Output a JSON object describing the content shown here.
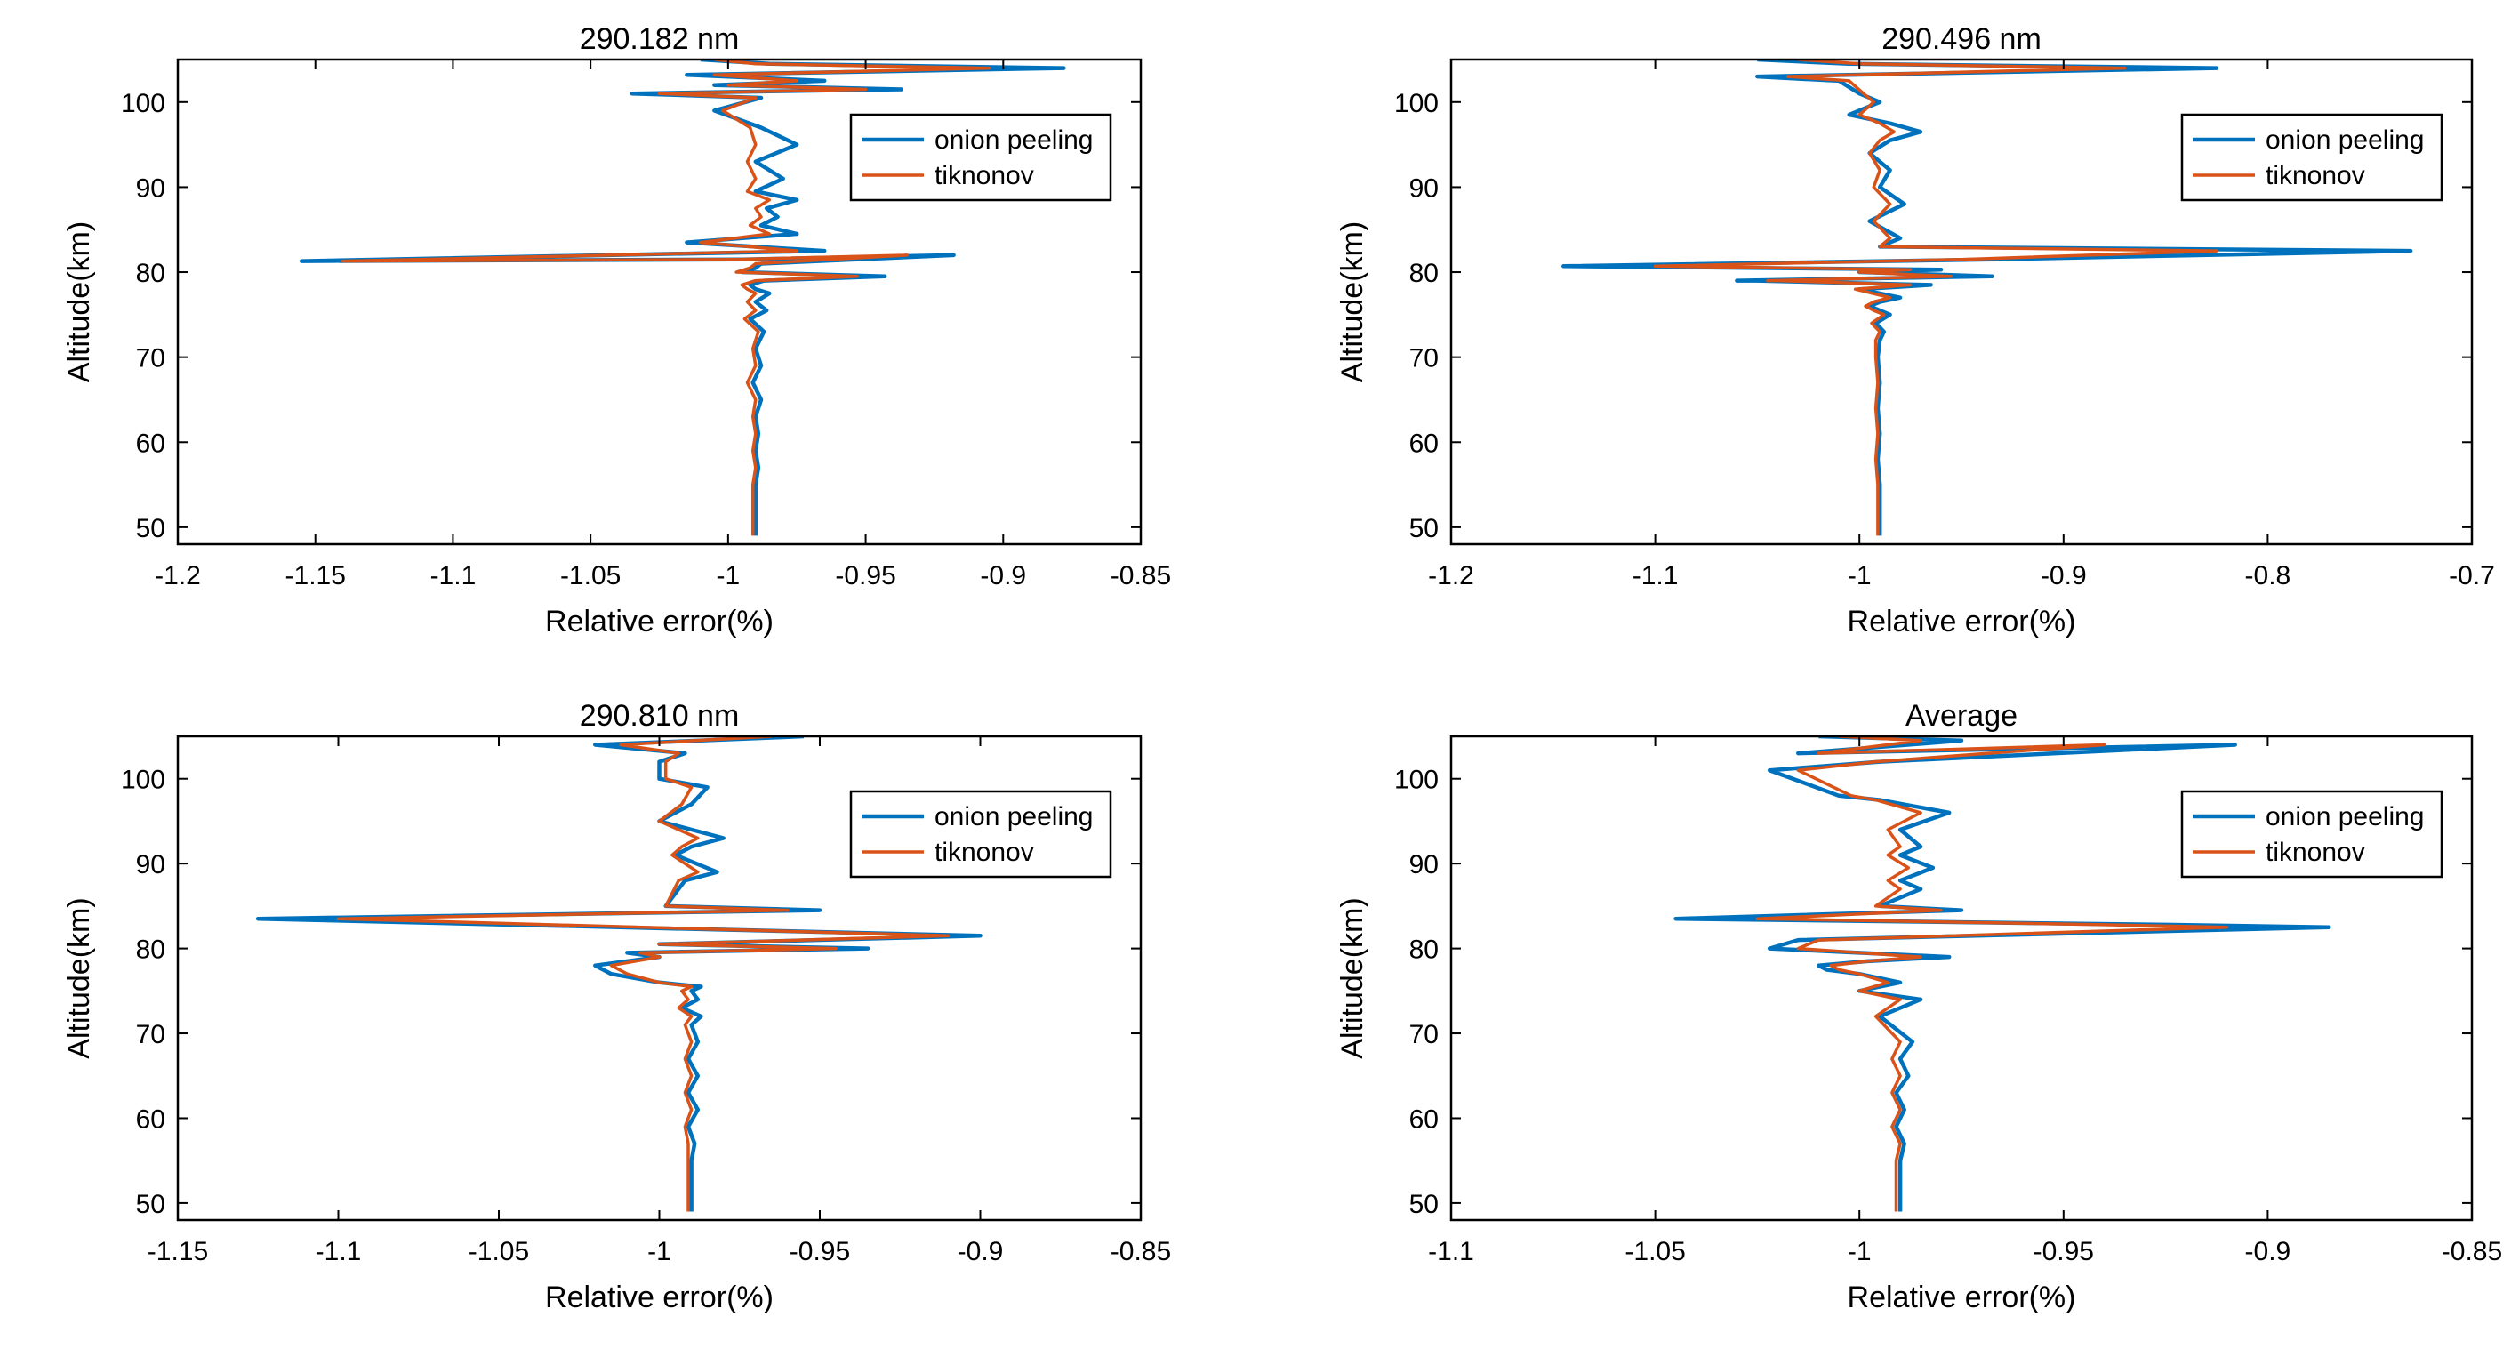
{
  "figure": "Relative error vs altitude",
  "colors": {
    "onion": "#0072BD",
    "tik": "#D95319"
  },
  "chart_data": [
    {
      "type": "line",
      "title": "290.182 nm",
      "xlabel": "Relative error(%)",
      "ylabel": "Altitude(km)",
      "xlim": [
        -1.2,
        -0.85
      ],
      "ylim": [
        48,
        105
      ],
      "xticks": [
        -1.2,
        -1.15,
        -1.1,
        -1.05,
        -1,
        -0.95,
        -0.9,
        -0.85
      ],
      "xtick_labels": [
        "-1.2",
        "-1.15",
        "-1.1",
        "-1.05",
        "-1",
        "-0.95",
        "-0.9",
        "-0.85"
      ],
      "yticks": [
        50,
        60,
        70,
        80,
        90,
        100
      ],
      "ytick_labels": [
        "50",
        "60",
        "70",
        "80",
        "90",
        "100"
      ],
      "legend": [
        "onion peeling",
        "tiknonov"
      ],
      "legend_position": "top-right",
      "series": [
        {
          "name": "onion peeling",
          "x": [
            -0.99,
            -0.99,
            -0.989,
            -0.99,
            -0.989,
            -0.99,
            -0.988,
            -0.991,
            -0.988,
            -0.99,
            -0.987,
            -0.992,
            -0.986,
            -0.99,
            -0.985,
            -0.99,
            -0.992,
            -0.987,
            -0.943,
            -0.995,
            -0.99,
            -0.988,
            -0.918,
            -0.995,
            -1.155,
            -0.965,
            -1.015,
            -0.975,
            -0.988,
            -0.982,
            -0.986,
            -0.975,
            -0.99,
            -0.98,
            -0.99,
            -0.975,
            -0.988,
            -1.005,
            -0.988,
            -1.035,
            -0.937,
            -1.005,
            -0.965,
            -1.015,
            -0.878,
            -0.985,
            -1.01
          ],
          "y": [
            49,
            55,
            57,
            59,
            61,
            63,
            65,
            67,
            69,
            71,
            73,
            74.5,
            75.5,
            76.5,
            77.5,
            78,
            78.5,
            79,
            79.5,
            80,
            80.5,
            81,
            82,
            81.5,
            81.3,
            82.5,
            83.5,
            84.5,
            85.5,
            86.5,
            87.5,
            88.5,
            89.5,
            91,
            93,
            95,
            97,
            99,
            100.5,
            101,
            101.5,
            102,
            102.5,
            103.2,
            104,
            104.5,
            105
          ]
        },
        {
          "name": "tiknonov",
          "x": [
            -0.991,
            -0.991,
            -0.99,
            -0.991,
            -0.99,
            -0.991,
            -0.99,
            -0.993,
            -0.99,
            -0.991,
            -0.989,
            -0.994,
            -0.99,
            -0.993,
            -0.99,
            -0.993,
            -0.995,
            -0.99,
            -0.953,
            -0.997,
            -0.992,
            -0.99,
            -0.935,
            -0.997,
            -1.14,
            -0.975,
            -1.01,
            -0.985,
            -0.992,
            -0.988,
            -0.99,
            -0.985,
            -0.993,
            -0.99,
            -0.993,
            -0.99,
            -0.992,
            -1.002,
            -0.99,
            -1.025,
            -0.95,
            -1.0,
            -0.975,
            -1.005,
            -0.905,
            -0.99,
            -1.005
          ],
          "y": [
            49,
            55,
            57,
            59,
            61,
            63,
            65,
            67,
            69,
            71,
            73,
            74.5,
            75.5,
            76.5,
            77.5,
            78,
            78.5,
            79,
            79.5,
            80,
            80.5,
            81,
            82,
            81.5,
            81.3,
            82.5,
            83.5,
            84.5,
            85.5,
            86.5,
            87.5,
            88.5,
            89.5,
            91,
            93,
            95,
            97,
            99,
            100.5,
            101,
            101.5,
            102,
            102.5,
            103.2,
            104,
            104.5,
            105
          ]
        }
      ]
    },
    {
      "type": "line",
      "title": "290.496 nm",
      "xlabel": "Relative error(%)",
      "ylabel": "Altitude(km)",
      "xlim": [
        -1.2,
        -0.7
      ],
      "ylim": [
        48,
        105
      ],
      "xticks": [
        -1.2,
        -1.1,
        -1,
        -0.9,
        -0.8,
        -0.7
      ],
      "xtick_labels": [
        "-1.2",
        "-1.1",
        "-1",
        "-0.9",
        "-0.8",
        "-0.7"
      ],
      "yticks": [
        50,
        60,
        70,
        80,
        90,
        100
      ],
      "ytick_labels": [
        "50",
        "60",
        "70",
        "80",
        "90",
        "100"
      ],
      "legend": [
        "onion peeling",
        "tiknonov"
      ],
      "legend_position": "top-right",
      "series": [
        {
          "name": "onion peeling",
          "x": [
            -0.99,
            -0.99,
            -0.991,
            -0.99,
            -0.991,
            -0.99,
            -0.991,
            -0.99,
            -0.988,
            -0.992,
            -0.985,
            -0.99,
            -0.995,
            -0.99,
            -0.98,
            -1.0,
            -0.965,
            -1.05,
            -1.06,
            -0.935,
            -1.0,
            -0.96,
            -1.145,
            -0.935,
            -0.73,
            -0.99,
            -0.98,
            -0.995,
            -0.978,
            -0.99,
            -0.985,
            -0.995,
            -0.985,
            -0.97,
            -0.985,
            -1.005,
            -0.99,
            -1.0,
            -1.01,
            -1.05,
            -0.825,
            -1.005,
            -1.05
          ],
          "y": [
            49,
            55,
            58,
            61,
            64,
            67,
            70,
            72,
            73,
            74,
            75,
            75.5,
            76,
            76.5,
            77,
            78,
            78.5,
            79,
            79,
            79.5,
            80,
            80.3,
            80.7,
            81.5,
            82.5,
            83,
            84,
            86,
            88,
            90,
            92,
            94,
            95.5,
            96.5,
            97.5,
            98.5,
            100,
            101,
            102.5,
            103,
            104,
            104.5,
            105
          ]
        },
        {
          "name": "tiknonov",
          "x": [
            -0.991,
            -0.991,
            -0.992,
            -0.991,
            -0.992,
            -0.991,
            -0.992,
            -0.992,
            -0.99,
            -0.994,
            -0.988,
            -0.993,
            -0.997,
            -0.993,
            -0.985,
            -1.002,
            -0.975,
            -1.04,
            -1.045,
            -0.955,
            -1.0,
            -0.975,
            -1.1,
            -0.95,
            -0.825,
            -0.99,
            -0.985,
            -0.993,
            -0.985,
            -0.993,
            -0.99,
            -0.995,
            -0.99,
            -0.983,
            -0.99,
            -1.0,
            -0.993,
            -0.998,
            -1.005,
            -1.035,
            -0.87,
            -1.0,
            -1.03
          ],
          "y": [
            49,
            55,
            58,
            61,
            64,
            67,
            70,
            72,
            73,
            74,
            75,
            75.5,
            76,
            76.5,
            77,
            78,
            78.5,
            79,
            79,
            79.5,
            80,
            80.3,
            80.7,
            81.5,
            82.5,
            83,
            84,
            86,
            88,
            90,
            92,
            94,
            95.5,
            96.5,
            97.5,
            98.5,
            100,
            101,
            102.5,
            103,
            104,
            104.5,
            105
          ]
        }
      ]
    },
    {
      "type": "line",
      "title": "290.810 nm",
      "xlabel": "Relative error(%)",
      "ylabel": "Altitude(km)",
      "xlim": [
        -1.15,
        -0.85
      ],
      "ylim": [
        48,
        105
      ],
      "xticks": [
        -1.15,
        -1.1,
        -1.05,
        -1,
        -0.95,
        -0.9,
        -0.85
      ],
      "xtick_labels": [
        "-1.15",
        "-1.1",
        "-1.05",
        "-1",
        "-0.95",
        "-0.9",
        "-0.85"
      ],
      "yticks": [
        50,
        60,
        70,
        80,
        90,
        100
      ],
      "ytick_labels": [
        "50",
        "60",
        "70",
        "80",
        "90",
        "100"
      ],
      "legend": [
        "onion peeling",
        "tiknonov"
      ],
      "legend_position": "top-right",
      "series": [
        {
          "name": "onion peeling",
          "x": [
            -0.99,
            -0.99,
            -0.989,
            -0.991,
            -0.988,
            -0.991,
            -0.988,
            -0.991,
            -0.988,
            -0.99,
            -0.987,
            -0.993,
            -0.988,
            -0.99,
            -0.987,
            -1.0,
            -1.015,
            -1.02,
            -1.0,
            -1.01,
            -0.935,
            -1.0,
            -0.9,
            -1.125,
            -0.95,
            -0.998,
            -0.992,
            -0.982,
            -0.995,
            -0.99,
            -0.98,
            -1.0,
            -0.99,
            -0.985,
            -1.0,
            -1.0,
            -0.992,
            -1.02,
            -0.955
          ],
          "y": [
            49,
            55,
            57,
            59,
            61,
            63,
            65,
            67,
            69,
            71,
            72,
            73,
            74,
            75,
            75.5,
            76,
            77,
            78,
            79,
            79.5,
            80,
            80.5,
            81.5,
            83.5,
            84.5,
            85,
            88,
            89,
            91,
            92,
            93,
            95,
            97,
            99,
            100,
            102,
            103,
            104,
            105
          ]
        },
        {
          "name": "tiknonov",
          "x": [
            -0.991,
            -0.991,
            -0.991,
            -0.992,
            -0.99,
            -0.992,
            -0.99,
            -0.992,
            -0.99,
            -0.992,
            -0.99,
            -0.994,
            -0.991,
            -0.993,
            -0.99,
            -1.0,
            -1.01,
            -1.015,
            -1.0,
            -1.006,
            -0.945,
            -1.0,
            -0.91,
            -1.1,
            -0.96,
            -0.998,
            -0.994,
            -0.988,
            -0.996,
            -0.993,
            -0.988,
            -1.0,
            -0.993,
            -0.99,
            -0.998,
            -0.998,
            -0.994,
            -1.012,
            -0.965
          ],
          "y": [
            49,
            55,
            57,
            59,
            61,
            63,
            65,
            67,
            69,
            71,
            72,
            73,
            74,
            75,
            75.5,
            76,
            77,
            78,
            79,
            79.5,
            80,
            80.5,
            81.5,
            83.5,
            84.5,
            85,
            88,
            89,
            91,
            92,
            93,
            95,
            97,
            99,
            100,
            102,
            103,
            104,
            105
          ]
        }
      ]
    },
    {
      "type": "line",
      "title": "Average",
      "xlabel": "Relative error(%)",
      "ylabel": "Altitude(km)",
      "xlim": [
        -1.1,
        -0.85
      ],
      "ylim": [
        48,
        105
      ],
      "xticks": [
        -1.1,
        -1.05,
        -1,
        -0.95,
        -0.9,
        -0.85
      ],
      "xtick_labels": [
        "-1.1",
        "-1.05",
        "-1",
        "-0.95",
        "-0.9",
        "-0.85"
      ],
      "yticks": [
        50,
        60,
        70,
        80,
        90,
        100
      ],
      "ytick_labels": [
        "50",
        "60",
        "70",
        "80",
        "90",
        "100"
      ],
      "legend": [
        "onion peeling",
        "tiknonov"
      ],
      "legend_position": "top-right",
      "series": [
        {
          "name": "onion peeling",
          "x": [
            -0.99,
            -0.99,
            -0.989,
            -0.991,
            -0.989,
            -0.991,
            -0.988,
            -0.99,
            -0.987,
            -0.995,
            -0.985,
            -1.0,
            -0.99,
            -1.0,
            -1.008,
            -1.01,
            -0.998,
            -0.978,
            -1.022,
            -1.015,
            -0.885,
            -0.925,
            -1.045,
            -0.975,
            -0.995,
            -0.985,
            -0.99,
            -0.982,
            -0.99,
            -0.985,
            -0.99,
            -0.978,
            -0.995,
            -1.005,
            -1.022,
            -0.995,
            -0.908,
            -1.015,
            -0.975,
            -1.01
          ],
          "y": [
            49,
            55,
            57,
            59,
            61,
            63,
            65,
            67,
            69,
            72,
            74,
            75,
            76,
            77,
            77.5,
            78,
            78.5,
            79,
            80,
            81,
            82.5,
            82.8,
            83.5,
            84.5,
            85,
            87,
            88,
            89.5,
            91,
            92,
            94,
            96,
            97.5,
            98,
            101,
            102,
            104,
            103,
            104.5,
            105
          ]
        },
        {
          "name": "tiknonov",
          "x": [
            -0.991,
            -0.991,
            -0.99,
            -0.992,
            -0.99,
            -0.992,
            -0.99,
            -0.992,
            -0.99,
            -0.996,
            -0.99,
            -1.0,
            -0.993,
            -1.0,
            -1.005,
            -1.007,
            -0.998,
            -0.985,
            -1.015,
            -1.01,
            -0.91,
            -0.94,
            -1.025,
            -0.98,
            -0.996,
            -0.99,
            -0.993,
            -0.988,
            -0.993,
            -0.99,
            -0.993,
            -0.985,
            -0.996,
            -1.002,
            -1.015,
            -0.996,
            -0.94,
            -1.01,
            -0.985,
            -1.005
          ],
          "y": [
            49,
            55,
            57,
            59,
            61,
            63,
            65,
            67,
            69,
            72,
            74,
            75,
            76,
            77,
            77.5,
            78,
            78.5,
            79,
            80,
            81,
            82.5,
            82.8,
            83.5,
            84.5,
            85,
            87,
            88,
            89.5,
            91,
            92,
            94,
            96,
            97.5,
            98,
            101,
            102,
            104,
            103,
            104.5,
            105
          ]
        }
      ]
    }
  ]
}
